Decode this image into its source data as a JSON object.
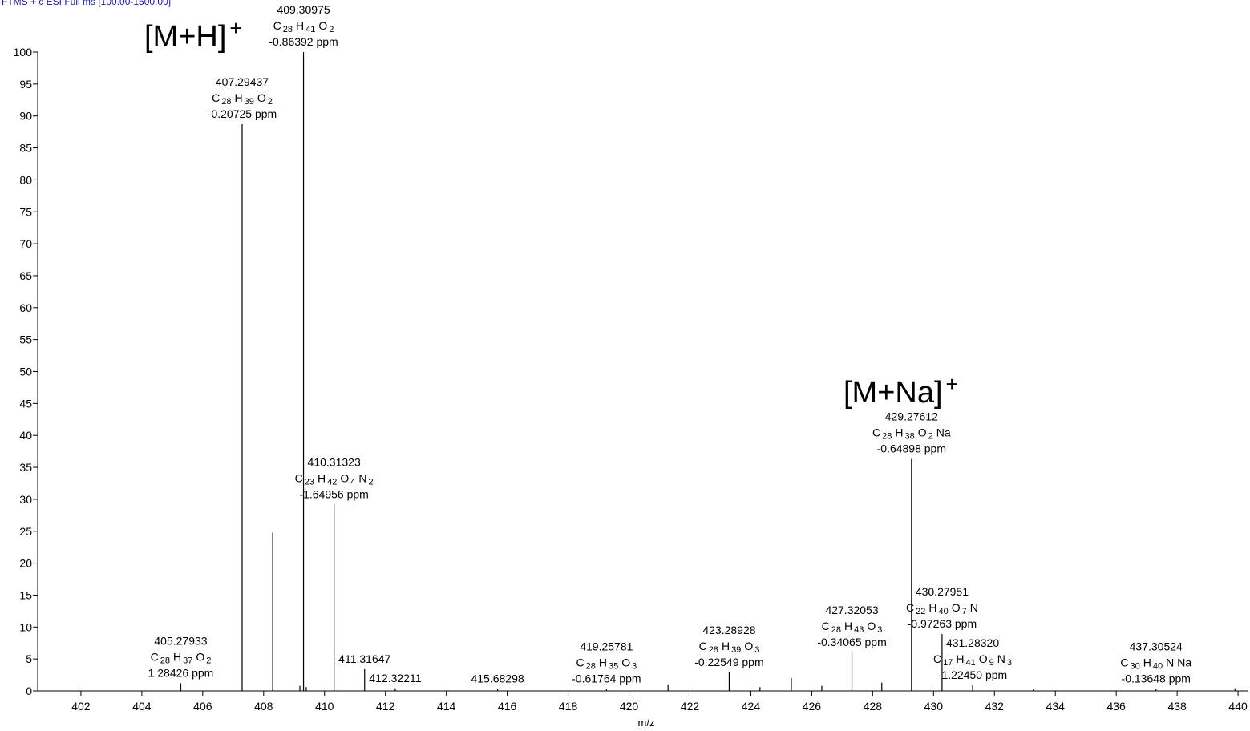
{
  "chart_data": {
    "type": "stick",
    "header": "FTMS + c ESI Full ms [100.00-1500.00]",
    "xlabel": "m/z",
    "xlim": [
      400.58,
      440.34
    ],
    "xticks": [
      402,
      404,
      406,
      408,
      410,
      412,
      414,
      416,
      418,
      420,
      422,
      424,
      426,
      428,
      430,
      432,
      434,
      436,
      438,
      440
    ],
    "ylim": [
      0,
      100
    ],
    "yticks": [
      0,
      5,
      10,
      15,
      20,
      25,
      30,
      35,
      40,
      45,
      50,
      55,
      60,
      65,
      70,
      75,
      80,
      85,
      90,
      95,
      100
    ],
    "color": "#000000",
    "x": [
      405.27933,
      407.29437,
      408.298,
      409.19,
      409.30975,
      409.4,
      410.31323,
      411.31647,
      412.32211,
      415.68298,
      419.25781,
      421.28,
      423.28928,
      424.3,
      425.33,
      426.33,
      427.32053,
      428.3,
      429.27612,
      430.27951,
      431.2832,
      433.28,
      437.30524,
      439.9
    ],
    "values": [
      1.2,
      88.7,
      24.8,
      0.8,
      100,
      0.6,
      29.2,
      3.4,
      0.4,
      0.3,
      0.3,
      1.0,
      2.9,
      0.6,
      2.0,
      0.8,
      6.0,
      1.3,
      36.3,
      8.9,
      0.9,
      0.3,
      0.3,
      0.4
    ],
    "mass_labels": [
      "405.27933",
      "407.29437",
      null,
      null,
      "409.30975",
      null,
      "410.31323",
      "411.31647",
      "412.32211",
      "415.68298",
      "419.25781",
      null,
      "423.28928",
      null,
      null,
      null,
      "427.32053",
      null,
      "429.27612",
      "430.27951",
      "431.28320",
      null,
      "437.30524",
      null
    ],
    "formulas": [
      [
        [
          "C",
          "28"
        ],
        [
          "H",
          "37"
        ],
        [
          "O",
          "2"
        ]
      ],
      [
        [
          "C",
          "28"
        ],
        [
          "H",
          "39"
        ],
        [
          "O",
          "2"
        ]
      ],
      null,
      null,
      [
        [
          "C",
          "28"
        ],
        [
          "H",
          "41"
        ],
        [
          "O",
          "2"
        ]
      ],
      null,
      [
        [
          "C",
          "23"
        ],
        [
          "H",
          "42"
        ],
        [
          "O",
          "4"
        ],
        [
          "N",
          "2"
        ]
      ],
      null,
      null,
      null,
      [
        [
          "C",
          "28"
        ],
        [
          "H",
          "35"
        ],
        [
          "O",
          "3"
        ]
      ],
      null,
      [
        [
          "C",
          "28"
        ],
        [
          "H",
          "39"
        ],
        [
          "O",
          "3"
        ]
      ],
      null,
      null,
      null,
      [
        [
          "C",
          "28"
        ],
        [
          "H",
          "43"
        ],
        [
          "O",
          "3"
        ]
      ],
      null,
      [
        [
          "C",
          "28"
        ],
        [
          "H",
          "38"
        ],
        [
          "O",
          "2"
        ],
        [
          "Na"
        ]
      ],
      [
        [
          "C",
          "22"
        ],
        [
          "H",
          "40"
        ],
        [
          "O",
          "7"
        ],
        [
          "N"
        ]
      ],
      [
        [
          "C",
          "17"
        ],
        [
          "H",
          "41"
        ],
        [
          "O",
          "9"
        ],
        [
          "N",
          "3"
        ]
      ],
      null,
      [
        [
          "C",
          "30"
        ],
        [
          "H",
          "40"
        ],
        [
          "N"
        ],
        [
          "Na"
        ]
      ],
      null
    ],
    "ppm_labels": [
      "1.28426 ppm",
      "-0.20725 ppm",
      null,
      null,
      "-0.86392 ppm",
      null,
      "-1.64956 ppm",
      null,
      null,
      null,
      "-0.61764 ppm",
      null,
      "-0.22549 ppm",
      null,
      null,
      null,
      "-0.34065 ppm",
      null,
      "-0.64898 ppm",
      "-0.97263 ppm",
      "-1.22450 ppm",
      null,
      "-0.13648 ppm",
      null
    ],
    "annotations": [
      {
        "text": "[M+H]",
        "sup": "+"
      },
      {
        "text": "[M+Na]",
        "sup": "+"
      }
    ]
  }
}
